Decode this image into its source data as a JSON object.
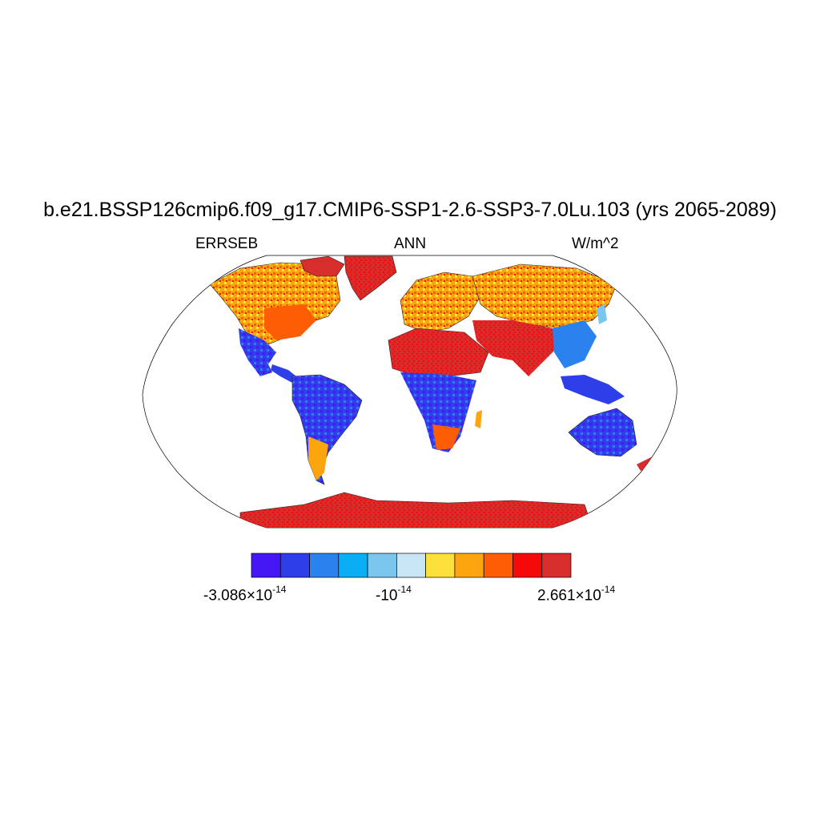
{
  "figure": {
    "title": "b.e21.BSSP126cmip6.f09_g17.CMIP6-SSP1-2.6-SSP3-7.0Lu.103 (yrs 2065-2089)",
    "left_label": "ERRSEB",
    "center_label": "ANN",
    "right_label": "W/m^2"
  },
  "colorbar": {
    "colors": [
      "#4617f5",
      "#2e3ee8",
      "#2a82ef",
      "#09aef5",
      "#7ac6ef",
      "#c7e5f5",
      "#fce03b",
      "#fca50f",
      "#fc5d05",
      "#f50a0a",
      "#d72d2d"
    ],
    "labels": {
      "min_mantissa": "-3.086×10",
      "min_exp": "-14",
      "mid_mantissa": "-10",
      "mid_exp": "-14",
      "max_mantissa": "2.661×10",
      "max_exp": "-14"
    }
  },
  "map": {
    "projection": "Robinson",
    "regions": [
      {
        "name": "north-america-north",
        "color": "#fca50f"
      },
      {
        "name": "north-america-south",
        "color": "#2e3ee8"
      },
      {
        "name": "greenland",
        "color": "#d72d2d"
      },
      {
        "name": "south-america",
        "color": "#2e3ee8"
      },
      {
        "name": "europe",
        "color": "#fca50f"
      },
      {
        "name": "sahara",
        "color": "#f50a0a"
      },
      {
        "name": "central-africa",
        "color": "#2e3ee8"
      },
      {
        "name": "asia-north",
        "color": "#fca50f"
      },
      {
        "name": "asia-south",
        "color": "#d72d2d"
      },
      {
        "name": "australia",
        "color": "#2e3ee8"
      },
      {
        "name": "antarctica",
        "color": "#d72d2d"
      }
    ]
  }
}
